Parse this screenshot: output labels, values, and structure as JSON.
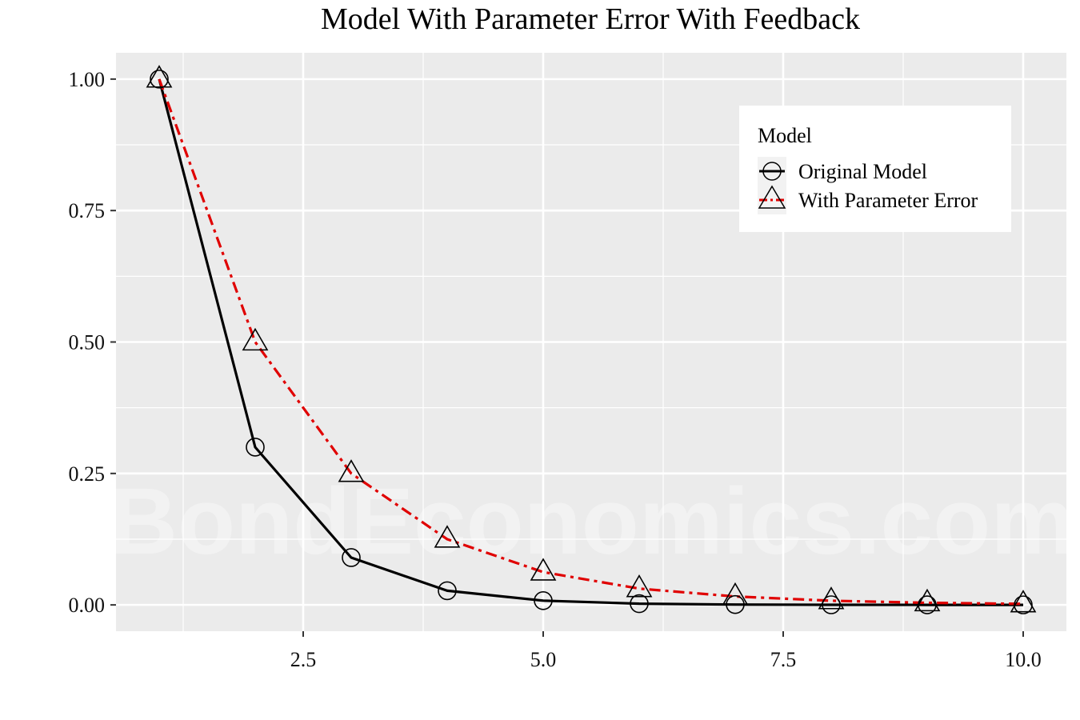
{
  "chart_data": {
    "type": "line",
    "title": "Model With Parameter Error With Feedback",
    "xlabel": "",
    "ylabel": "",
    "xlim": [
      0.55,
      10.45
    ],
    "ylim": [
      -0.05,
      1.05
    ],
    "x_ticks": [
      2.5,
      5.0,
      7.5,
      10.0
    ],
    "x_tick_labels": [
      "2.5",
      "5.0",
      "7.5",
      "10.0"
    ],
    "y_ticks": [
      0,
      0.25,
      0.5,
      0.75,
      1.0
    ],
    "y_tick_labels": [
      "0.00",
      "0.25",
      "0.50",
      "0.75",
      "1.00"
    ],
    "grid": true,
    "legend": {
      "title": "Model",
      "placement": "top-right",
      "entries": [
        "Original Model",
        "With Parameter Error"
      ]
    },
    "x": [
      1,
      2,
      3,
      4,
      5,
      6,
      7,
      8,
      9,
      10
    ],
    "series": [
      {
        "name": "Original Model",
        "color": "#000000",
        "line": "solid",
        "marker": "circle",
        "values": [
          1.0,
          0.3,
          0.09,
          0.027,
          0.0081,
          0.0024,
          0.0007,
          0.0002,
          0.0001,
          0.0
        ]
      },
      {
        "name": "With Parameter Error",
        "color": "#e00000",
        "line": "dashdot",
        "marker": "triangle",
        "values": [
          1.0,
          0.5,
          0.25,
          0.125,
          0.0625,
          0.031,
          0.016,
          0.008,
          0.004,
          0.002
        ]
      }
    ],
    "watermark": "BondEconomics.com",
    "colors": {
      "panel": "#ebebeb",
      "grid": "#ffffff",
      "series1": "#000000",
      "series2": "#e00000"
    }
  }
}
